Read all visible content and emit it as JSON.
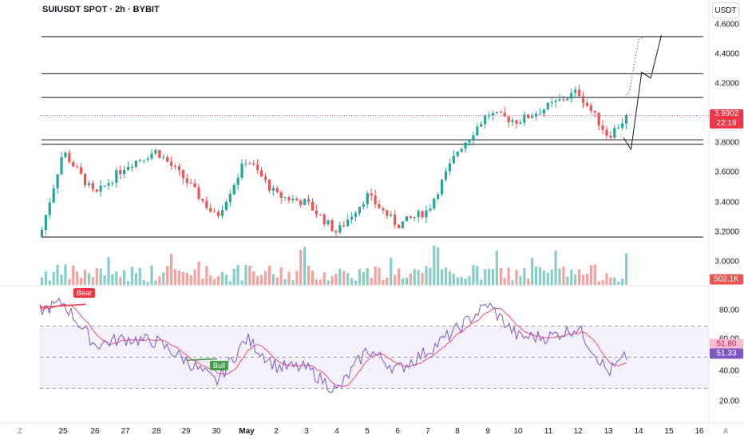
{
  "header": {
    "title": "SUIUSDT SPOT · 2h · BYBIT",
    "currency_button": "USDT"
  },
  "colors": {
    "up": "#26a69a",
    "down": "#ef5350",
    "rsi_line": "#7e57c2",
    "rsi_ma": "#e91e63",
    "rsi_band": "#ede7f6",
    "price_tag": "#f23645"
  },
  "price_axis": {
    "ticks": [
      "4.6000",
      "4.4000",
      "4.2000",
      "3.8000",
      "3.6000",
      "3.4000",
      "3.2000",
      "3.0000"
    ],
    "current_price": "3.9902",
    "countdown": "22:19",
    "volume_label": "502.1K"
  },
  "rsi_axis": {
    "ticks": [
      "80.00",
      "40.00",
      "20.00"
    ],
    "partial_tick": "60.00",
    "ma_value": "51.80",
    "rsi_value": "51.33"
  },
  "rsi_labels": {
    "bear": "Bear",
    "bull": "Bull"
  },
  "time_axis": {
    "ticks": [
      "25",
      "26",
      "27",
      "28",
      "29",
      "30",
      "May",
      "2",
      "3",
      "4",
      "5",
      "6",
      "7",
      "8",
      "9",
      "10",
      "11",
      "12",
      "13",
      "14",
      "15",
      "16"
    ],
    "corner_left": "Z",
    "corner_right": "A"
  },
  "chart_data": {
    "type": "candlestick",
    "horizontal_levels": [
      4.52,
      4.27,
      4.11,
      3.825,
      3.795,
      3.17
    ],
    "current_price_line": 3.9902,
    "key_points": [
      {
        "x": "24",
        "price": 3.17
      },
      {
        "x": "25",
        "price": 3.75
      },
      {
        "x": "26",
        "price": 3.45
      },
      {
        "x": "27",
        "price": 3.65
      },
      {
        "x": "28",
        "price": 3.75
      },
      {
        "x": "29",
        "price": 3.55
      },
      {
        "x": "30",
        "price": 3.3
      },
      {
        "x": "May",
        "price": 3.7
      },
      {
        "x": "2",
        "price": 3.45
      },
      {
        "x": "3",
        "price": 3.4
      },
      {
        "x": "4",
        "price": 3.2
      },
      {
        "x": "5",
        "price": 3.45
      },
      {
        "x": "6",
        "price": 3.25
      },
      {
        "x": "7",
        "price": 3.35
      },
      {
        "x": "8",
        "price": 3.75
      },
      {
        "x": "9",
        "price": 4.0
      },
      {
        "x": "10",
        "price": 3.95
      },
      {
        "x": "11",
        "price": 4.05
      },
      {
        "x": "12",
        "price": 4.15
      },
      {
        "x": "13",
        "price": 3.85
      },
      {
        "x": "13.5",
        "price": 3.99
      }
    ],
    "projection_solid": [
      [
        13.5,
        3.84
      ],
      [
        13.75,
        3.76
      ],
      [
        14.1,
        4.28
      ],
      [
        14.4,
        4.24
      ],
      [
        14.75,
        4.53
      ]
    ],
    "projection_dotted": [
      [
        13.5,
        4.11
      ],
      [
        13.7,
        4.15
      ],
      [
        14.0,
        4.5
      ],
      [
        14.2,
        4.52
      ]
    ],
    "rsi": {
      "upper_band": 70,
      "middle": 50,
      "lower_band": 30,
      "key_points": [
        {
          "x": "24",
          "value": 80
        },
        {
          "x": "25",
          "value": 85
        },
        {
          "x": "26",
          "value": 58
        },
        {
          "x": "27",
          "value": 62
        },
        {
          "x": "28",
          "value": 60
        },
        {
          "x": "29",
          "value": 48
        },
        {
          "x": "30",
          "value": 34
        },
        {
          "x": "May",
          "value": 62
        },
        {
          "x": "2",
          "value": 44
        },
        {
          "x": "3",
          "value": 43
        },
        {
          "x": "4",
          "value": 28
        },
        {
          "x": "5",
          "value": 55
        },
        {
          "x": "6",
          "value": 42
        },
        {
          "x": "7",
          "value": 54
        },
        {
          "x": "8",
          "value": 68
        },
        {
          "x": "9",
          "value": 84
        },
        {
          "x": "10",
          "value": 63
        },
        {
          "x": "11",
          "value": 63
        },
        {
          "x": "12",
          "value": 69
        },
        {
          "x": "13",
          "value": 40
        },
        {
          "x": "13.5",
          "value": 51.33
        }
      ]
    }
  }
}
